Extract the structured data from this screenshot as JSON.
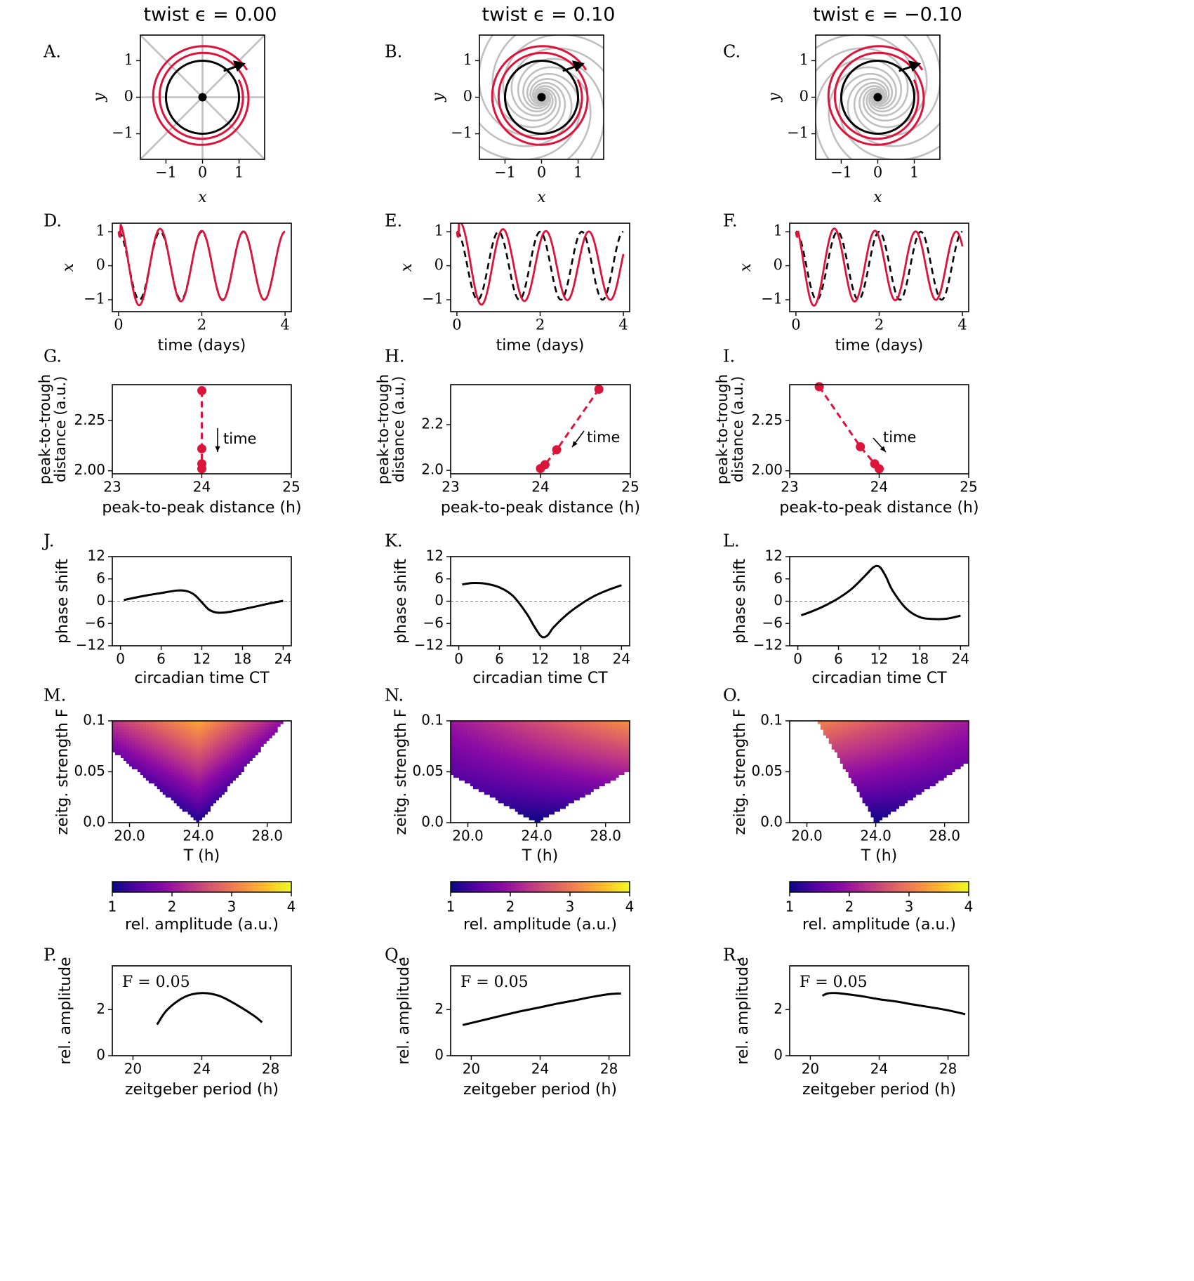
{
  "figure": {
    "column_titles": [
      "twist ϵ = 0.00",
      "twist ϵ = 0.10",
      "twist ϵ = −0.10"
    ],
    "twist": [
      0.0,
      0.1,
      -0.1
    ],
    "panel_letters": [
      "A.",
      "B.",
      "C.",
      "D.",
      "E.",
      "F.",
      "G.",
      "H.",
      "I.",
      "J.",
      "K.",
      "L.",
      "M.",
      "N.",
      "O.",
      "P.",
      "Q.",
      "R."
    ]
  },
  "chart_data": [
    {
      "panel": "A",
      "type": "line",
      "xlabel": "x",
      "ylabel": "y",
      "xlim": [
        -1.7,
        1.7
      ],
      "ylim": [
        -1.7,
        1.7
      ],
      "xticks": [
        -1,
        0,
        1
      ],
      "yticks": [
        -1,
        0,
        1
      ],
      "xticklabels": [
        "−1",
        "0",
        "1"
      ],
      "yticklabels": [
        "−1",
        "0",
        "1"
      ],
      "series": [
        {
          "kind": "limit_cycle",
          "radius": 1.0
        },
        {
          "kind": "trajectory",
          "radius_start": 1.43,
          "radius_end": 1.1,
          "turns": 2
        }
      ]
    },
    {
      "panel": "B",
      "type": "line",
      "xlabel": "x",
      "ylabel": "y",
      "xlim": [
        -1.7,
        1.7
      ],
      "ylim": [
        -1.7,
        1.7
      ],
      "xticks": [
        -1,
        0,
        1
      ],
      "yticks": [
        -1,
        0,
        1
      ],
      "xticklabels": [
        "−1",
        "0",
        "1"
      ],
      "yticklabels": [
        "−1",
        "0",
        "1"
      ],
      "series": [
        {
          "kind": "limit_cycle",
          "radius": 1.0
        },
        {
          "kind": "trajectory",
          "radius_start": 1.43,
          "radius_end": 1.1,
          "turns": 2
        }
      ]
    },
    {
      "panel": "C",
      "type": "line",
      "xlabel": "x",
      "ylabel": "y",
      "xlim": [
        -1.7,
        1.7
      ],
      "ylim": [
        -1.7,
        1.7
      ],
      "xticks": [
        -1,
        0,
        1
      ],
      "yticks": [
        -1,
        0,
        1
      ],
      "xticklabels": [
        "−1",
        "0",
        "1"
      ],
      "yticklabels": [
        "−1",
        "0",
        "1"
      ],
      "series": [
        {
          "kind": "limit_cycle",
          "radius": 1.0
        },
        {
          "kind": "trajectory",
          "radius_start": 1.43,
          "radius_end": 1.1,
          "turns": 2
        }
      ]
    },
    {
      "panel": "D",
      "type": "line",
      "xlabel": "time (days)",
      "ylabel": "x",
      "xlim": [
        -0.15,
        4.15
      ],
      "ylim": [
        -1.35,
        1.25
      ],
      "xticks": [
        0,
        2,
        4
      ],
      "yticks": [
        -1,
        0,
        1
      ],
      "xticklabels": [
        "0",
        "2",
        "4"
      ],
      "yticklabels": [
        "−1",
        "0",
        "1"
      ],
      "series": [
        {
          "style": "dashed",
          "color": "#000000",
          "period_days": 1.0,
          "phase": 0.0,
          "amplitude": 1.0
        },
        {
          "style": "solid",
          "color": "#dc143c",
          "period_days": 1.0,
          "phase": 0.0,
          "amplitude_start": 1.3,
          "amplitude_end": 1.0
        }
      ]
    },
    {
      "panel": "E",
      "type": "line",
      "xlabel": "time (days)",
      "ylabel": "x",
      "xlim": [
        -0.15,
        4.15
      ],
      "ylim": [
        -1.35,
        1.25
      ],
      "xticks": [
        0,
        2,
        4
      ],
      "yticks": [
        -1,
        0,
        1
      ],
      "xticklabels": [
        "0",
        "2",
        "4"
      ],
      "yticklabels": [
        "−1",
        "0",
        "1"
      ],
      "series": [
        {
          "style": "dashed",
          "color": "#000000",
          "period_days": 1.0,
          "phase": 0.0,
          "amplitude": 1.0
        },
        {
          "style": "solid",
          "color": "#dc143c",
          "period_days": 1.03,
          "phase": 0.08,
          "amplitude_start": 1.3,
          "amplitude_end": 1.0
        }
      ]
    },
    {
      "panel": "F",
      "type": "line",
      "xlabel": "time (days)",
      "ylabel": "x",
      "xlim": [
        -0.15,
        4.15
      ],
      "ylim": [
        -1.35,
        1.25
      ],
      "xticks": [
        0,
        2,
        4
      ],
      "yticks": [
        -1,
        0,
        1
      ],
      "xticklabels": [
        "0",
        "2",
        "4"
      ],
      "yticklabels": [
        "−1",
        "0",
        "1"
      ],
      "series": [
        {
          "style": "dashed",
          "color": "#000000",
          "period_days": 1.0,
          "phase": 0.0,
          "amplitude": 1.0
        },
        {
          "style": "solid",
          "color": "#dc143c",
          "period_days": 0.975,
          "phase": -0.05,
          "amplitude_start": 1.3,
          "amplitude_end": 1.0
        }
      ]
    },
    {
      "panel": "G",
      "type": "scatter",
      "xlabel": "peak-to-peak distance (h)",
      "ylabel": [
        "peak-to-trough",
        "distance (a.u.)"
      ],
      "xlim": [
        23,
        25
      ],
      "ylim": [
        1.985,
        2.43
      ],
      "xticks": [
        23,
        24,
        25
      ],
      "yticks": [
        2.0,
        2.25
      ],
      "xticklabels": [
        "23",
        "24",
        "25"
      ],
      "yticklabels": [
        "2.00",
        "2.25"
      ],
      "x": [
        24.0,
        24.0,
        24.0,
        24.0
      ],
      "y": [
        2.4,
        2.11,
        2.035,
        2.01
      ],
      "annotation": "time"
    },
    {
      "panel": "H",
      "type": "scatter",
      "xlabel": "peak-to-peak distance (h)",
      "ylabel": [
        "peak-to-trough",
        "distance (a.u.)"
      ],
      "xlim": [
        23,
        25
      ],
      "ylim": [
        1.985,
        2.375
      ],
      "xticks": [
        23,
        24,
        25
      ],
      "yticks": [
        2.0,
        2.2
      ],
      "xticklabels": [
        "23",
        "24",
        "25"
      ],
      "yticklabels": [
        "2.0",
        "2.2"
      ],
      "x": [
        24.65,
        24.18,
        24.05,
        24.0
      ],
      "y": [
        2.355,
        2.09,
        2.025,
        2.008
      ],
      "annotation": "time"
    },
    {
      "panel": "I",
      "type": "scatter",
      "xlabel": "peak-to-peak distance (h)",
      "ylabel": [
        "peak-to-trough",
        "distance (a.u.)"
      ],
      "xlim": [
        23,
        25
      ],
      "ylim": [
        1.985,
        2.43
      ],
      "xticks": [
        23,
        24,
        25
      ],
      "yticks": [
        2.0,
        2.25
      ],
      "xticklabels": [
        "23",
        "24",
        "25"
      ],
      "yticklabels": [
        "2.00",
        "2.25"
      ],
      "x": [
        23.33,
        23.79,
        23.95,
        24.0
      ],
      "y": [
        2.42,
        2.12,
        2.035,
        2.01
      ],
      "annotation": "time"
    },
    {
      "panel": "J",
      "type": "line",
      "xlabel": "circadian time CT",
      "ylabel": "phase shift",
      "xlim": [
        -1.2,
        25.2
      ],
      "ylim": [
        -12,
        12
      ],
      "xticks": [
        0,
        6,
        12,
        18,
        24
      ],
      "yticks": [
        -12,
        -6,
        0,
        6,
        12
      ],
      "xticklabels": [
        "0",
        "6",
        "12",
        "18",
        "24"
      ],
      "yticklabels": [
        "−12",
        "−6",
        "0",
        "6",
        "12"
      ],
      "x": [
        0.5,
        2,
        4,
        6,
        8,
        9,
        10,
        11,
        12,
        13,
        14,
        15,
        16,
        18,
        20,
        22,
        24
      ],
      "y": [
        0.3,
        0.9,
        1.6,
        2.2,
        2.8,
        2.9,
        2.6,
        1.6,
        -0.3,
        -2.2,
        -3.0,
        -3.1,
        -2.9,
        -2.2,
        -1.4,
        -0.6,
        0.1
      ]
    },
    {
      "panel": "K",
      "type": "line",
      "xlabel": "circadian time CT",
      "ylabel": "phase shift",
      "xlim": [
        -1.2,
        25.2
      ],
      "ylim": [
        -12,
        12
      ],
      "xticks": [
        0,
        6,
        12,
        18,
        24
      ],
      "yticks": [
        -12,
        -6,
        0,
        6,
        12
      ],
      "xticklabels": [
        "0",
        "6",
        "12",
        "18",
        "24"
      ],
      "yticklabels": [
        "−12",
        "−6",
        "0",
        "6",
        "12"
      ],
      "x": [
        0.5,
        2,
        4,
        6,
        8,
        10,
        11,
        12,
        12.6,
        13.2,
        14,
        16,
        18,
        20,
        22,
        24
      ],
      "y": [
        4.5,
        4.9,
        4.7,
        3.7,
        1.4,
        -3.3,
        -6.4,
        -9.2,
        -9.7,
        -9.0,
        -7.0,
        -3.5,
        -0.8,
        1.4,
        3.0,
        4.3
      ]
    },
    {
      "panel": "L",
      "type": "line",
      "xlabel": "circadian time CT",
      "ylabel": "phase shift",
      "xlim": [
        -1.2,
        25.2
      ],
      "ylim": [
        -12,
        12
      ],
      "xticks": [
        0,
        6,
        12,
        18,
        24
      ],
      "yticks": [
        -12,
        -6,
        0,
        6,
        12
      ],
      "xticklabels": [
        "0",
        "6",
        "12",
        "18",
        "24"
      ],
      "yticklabels": [
        "−12",
        "−6",
        "0",
        "6",
        "12"
      ],
      "x": [
        0.5,
        2,
        4,
        6,
        8,
        10,
        11,
        11.6,
        12.2,
        13,
        14,
        16,
        18,
        20,
        22,
        24
      ],
      "y": [
        -3.8,
        -2.8,
        -1.2,
        0.8,
        3.4,
        7.0,
        8.9,
        9.5,
        9.0,
        6.6,
        2.8,
        -2.0,
        -4.3,
        -4.8,
        -4.7,
        -3.9
      ]
    },
    {
      "panel": "M",
      "type": "heatmap",
      "xlabel": "T (h)",
      "ylabel": "zeitg. strength F",
      "xlim": [
        19,
        29.4
      ],
      "ylim": [
        0,
        0.1
      ],
      "xticks": [
        20,
        24,
        28
      ],
      "yticks": [
        0.0,
        0.05,
        0.1
      ],
      "xticklabels": [
        "20.0",
        "24.0",
        "28.0"
      ],
      "yticklabels": [
        "0.0",
        "0.05",
        "0.1"
      ],
      "vmin": 1,
      "vmax": 4,
      "colormap": "plasma",
      "tongue_center": 24.0,
      "tongue_width_left": 7.0,
      "tongue_width_right": 5.0
    },
    {
      "panel": "N",
      "type": "heatmap",
      "xlabel": "T (h)",
      "ylabel": "zeitg. strength F",
      "xlim": [
        19,
        29.4
      ],
      "ylim": [
        0,
        0.1
      ],
      "xticks": [
        20,
        24,
        28
      ],
      "yticks": [
        0.0,
        0.05,
        0.1
      ],
      "xticklabels": [
        "20.0",
        "24.0",
        "28.0"
      ],
      "yticklabels": [
        "0.0",
        "0.05",
        "0.1"
      ],
      "vmin": 1,
      "vmax": 4,
      "colormap": "plasma",
      "tongue_center": 24.0,
      "tongue_width_left": 10.5,
      "tongue_width_right": 10.5
    },
    {
      "panel": "O",
      "type": "heatmap",
      "xlabel": "T (h)",
      "ylabel": "zeitg. strength F",
      "xlim": [
        19,
        29.4
      ],
      "ylim": [
        0,
        0.1
      ],
      "xticks": [
        20,
        24,
        28
      ],
      "yticks": [
        0.0,
        0.05,
        0.1
      ],
      "xticklabels": [
        "20.0",
        "24.0",
        "28.0"
      ],
      "yticklabels": [
        "0.0",
        "0.05",
        "0.1"
      ],
      "vmin": 1,
      "vmax": 4,
      "colormap": "plasma",
      "tongue_center": 24.0,
      "tongue_width_left": 3.4,
      "tongue_width_right": 9.0
    },
    {
      "panel": "colorbars",
      "type": "heatmap",
      "label": "rel. amplitude (a.u.)",
      "ticks": [
        1,
        2,
        3,
        4
      ],
      "ticklabels": [
        "1",
        "2",
        "3",
        "4"
      ],
      "colormap": "plasma"
    },
    {
      "panel": "P",
      "type": "line",
      "xlabel": "zeitgeber period (h)",
      "ylabel": "rel. amplitude",
      "annotation": "F = 0.05",
      "xlim": [
        18.8,
        29.2
      ],
      "ylim": [
        0,
        3.9
      ],
      "xticks": [
        20,
        24,
        28
      ],
      "yticks": [
        0,
        2
      ],
      "xticklabels": [
        "20",
        "24",
        "28"
      ],
      "yticklabels": [
        "0",
        "2"
      ],
      "x": [
        21.4,
        22,
        23,
        24,
        25,
        26,
        27,
        27.5
      ],
      "y": [
        1.35,
        2.0,
        2.55,
        2.72,
        2.6,
        2.22,
        1.75,
        1.45
      ]
    },
    {
      "panel": "Q",
      "type": "line",
      "xlabel": "zeitgeber period (h)",
      "ylabel": "rel. amplitude",
      "annotation": "F = 0.05",
      "xlim": [
        18.8,
        29.2
      ],
      "ylim": [
        0,
        3.9
      ],
      "xticks": [
        20,
        24,
        28
      ],
      "yticks": [
        0,
        2
      ],
      "xticklabels": [
        "20",
        "24",
        "28"
      ],
      "yticklabels": [
        "0",
        "2"
      ],
      "x": [
        19.5,
        21,
        22,
        23,
        24,
        25,
        26,
        27,
        28,
        28.7
      ],
      "y": [
        1.33,
        1.6,
        1.78,
        1.95,
        2.1,
        2.26,
        2.4,
        2.55,
        2.67,
        2.7
      ]
    },
    {
      "panel": "R",
      "type": "line",
      "xlabel": "zeitgeber period (h)",
      "ylabel": "rel. amplitude",
      "annotation": "F = 0.05",
      "xlim": [
        18.8,
        29.2
      ],
      "ylim": [
        0,
        3.9
      ],
      "xticks": [
        20,
        24,
        28
      ],
      "yticks": [
        0,
        2
      ],
      "xticklabels": [
        "20",
        "24",
        "28"
      ],
      "yticklabels": [
        "0",
        "2"
      ],
      "x": [
        20.7,
        21.0,
        21.5,
        22,
        23,
        24,
        25,
        26,
        27,
        28,
        29
      ],
      "y": [
        2.6,
        2.7,
        2.72,
        2.68,
        2.58,
        2.45,
        2.35,
        2.22,
        2.1,
        1.97,
        1.8
      ]
    }
  ]
}
